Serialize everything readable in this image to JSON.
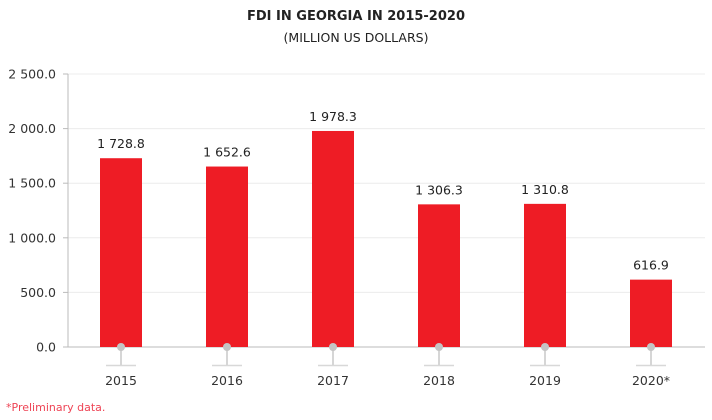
{
  "chart_data": {
    "type": "bar",
    "title": "FDI IN GEORGIA IN 2015-2020",
    "subtitle": "(MILLION US DOLLARS)",
    "categories": [
      "2015",
      "2016",
      "2017",
      "2018",
      "2019",
      "2020*"
    ],
    "values": [
      1728.8,
      1652.6,
      1978.3,
      1306.3,
      1310.8,
      616.9
    ],
    "data_labels": [
      "1 728.8",
      "1 652.6",
      "1 978.3",
      "1 306.3",
      "1 310.8",
      "616.9"
    ],
    "yticks": [
      0,
      500,
      1000,
      1500,
      2000,
      2500
    ],
    "ytick_labels": [
      "0.0",
      "500.0",
      "1 000.0",
      "1 500.0",
      "2 000.0",
      "2 500.0"
    ],
    "ylim": [
      0,
      2500
    ],
    "xlabel": "",
    "ylabel": "",
    "grid": true,
    "bar_color": "#ee1c25",
    "footnote": "*Preliminary data."
  }
}
